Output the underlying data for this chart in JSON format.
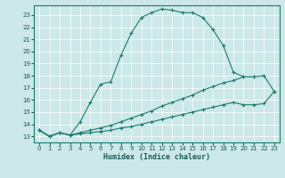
{
  "title": "",
  "xlabel": "Humidex (Indice chaleur)",
  "bg_color": "#cce8e8",
  "grid_color": "#ffffff",
  "line_color": "#1a7a6e",
  "xlim": [
    -0.5,
    23.5
  ],
  "ylim": [
    12.5,
    23.8
  ],
  "xticks": [
    0,
    1,
    2,
    3,
    4,
    5,
    6,
    7,
    8,
    9,
    10,
    11,
    12,
    13,
    14,
    15,
    16,
    17,
    18,
    19,
    20,
    21,
    22,
    23
  ],
  "yticks": [
    13,
    14,
    15,
    16,
    17,
    18,
    19,
    20,
    21,
    22,
    23
  ],
  "lines": [
    {
      "x": [
        0,
        1,
        2,
        3,
        4,
        5,
        6,
        7,
        8,
        9,
        10,
        11,
        12,
        13,
        14,
        15,
        16,
        17,
        18,
        19,
        20,
        21
      ],
      "y": [
        13.5,
        13.0,
        13.3,
        13.1,
        14.2,
        15.8,
        17.3,
        17.5,
        19.7,
        21.5,
        22.8,
        23.2,
        23.5,
        23.4,
        23.2,
        23.2,
        22.8,
        21.8,
        20.5,
        18.3,
        17.9,
        17.9
      ]
    },
    {
      "x": [
        0,
        1,
        2,
        3,
        4,
        5,
        6,
        7,
        8,
        9,
        10,
        11,
        12,
        13,
        14,
        15,
        16,
        17,
        18,
        19,
        20,
        21,
        22,
        23
      ],
      "y": [
        13.5,
        13.0,
        13.3,
        13.1,
        13.3,
        13.5,
        13.7,
        13.9,
        14.2,
        14.5,
        14.8,
        15.1,
        15.5,
        15.8,
        16.1,
        16.4,
        16.8,
        17.1,
        17.4,
        17.6,
        17.9,
        17.9,
        18.0,
        16.7
      ]
    },
    {
      "x": [
        0,
        1,
        2,
        3,
        4,
        5,
        6,
        7,
        8,
        9,
        10,
        11,
        12,
        13,
        14,
        15,
        16,
        17,
        18,
        19,
        20,
        21,
        22,
        23
      ],
      "y": [
        13.5,
        13.0,
        13.3,
        13.1,
        13.2,
        13.3,
        13.4,
        13.5,
        13.7,
        13.8,
        14.0,
        14.2,
        14.4,
        14.6,
        14.8,
        15.0,
        15.2,
        15.4,
        15.6,
        15.8,
        15.6,
        15.6,
        15.7,
        16.7
      ]
    }
  ]
}
